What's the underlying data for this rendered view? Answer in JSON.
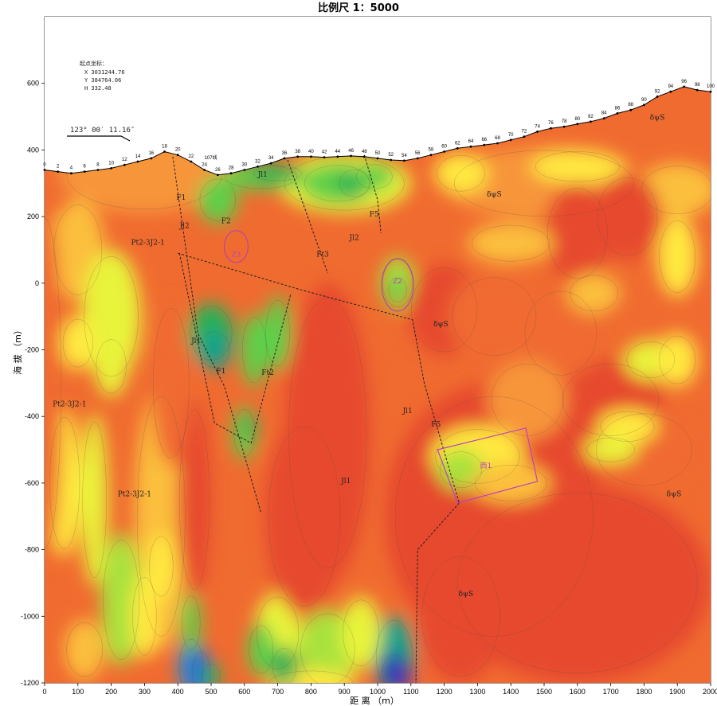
{
  "chart_data": {
    "type": "heatmap",
    "title": "比例尺  1：5000",
    "xlabel": "距 离 （m）",
    "ylabel": "海 拔 （m）",
    "xlim": [
      0,
      2000
    ],
    "ylim": [
      -1200,
      800
    ],
    "x_ticks": [
      0,
      100,
      200,
      300,
      400,
      500,
      600,
      700,
      800,
      900,
      1000,
      1100,
      1200,
      1300,
      1400,
      1500,
      1600,
      1700,
      1800,
      1900,
      2000
    ],
    "y_ticks": [
      600,
      400,
      200,
      0,
      -200,
      -400,
      -600,
      -800,
      -1000,
      -1200
    ],
    "start_coordinates": {
      "heading": "起点坐标：",
      "x": "X 3031244.76",
      "y": "Y 384764.06",
      "h": "H 332.48"
    },
    "azimuth": "123° 00′ 11.16″",
    "station_labels": [
      "0",
      "2",
      "4",
      "6",
      "8",
      "10",
      "12",
      "14",
      "16",
      "18",
      "20",
      "22",
      "24",
      "26",
      "28",
      "30",
      "32",
      "34",
      "36",
      "38",
      "40",
      "42",
      "44",
      "46",
      "48",
      "50",
      "52",
      "54",
      "56",
      "58",
      "60",
      "62",
      "64",
      "66",
      "68",
      "70",
      "72",
      "74",
      "76",
      "78",
      "80",
      "82",
      "84",
      "86",
      "88",
      "90",
      "92",
      "94",
      "96",
      "98",
      "100"
    ],
    "station_distance_interval_m": 20,
    "station_elevations_m": [
      340,
      335,
      330,
      335,
      340,
      345,
      355,
      365,
      375,
      395,
      385,
      365,
      340,
      325,
      330,
      340,
      350,
      360,
      375,
      380,
      380,
      378,
      380,
      382,
      380,
      375,
      370,
      368,
      375,
      385,
      395,
      405,
      410,
      415,
      420,
      430,
      440,
      455,
      465,
      470,
      478,
      485,
      495,
      510,
      520,
      535,
      560,
      575,
      590,
      580,
      575
    ],
    "geology_labels": [
      {
        "text": "Pt2-3J2-1",
        "x": 75,
        "y": -370
      },
      {
        "text": "Pt2-3J2-1",
        "x": 270,
        "y": -640
      },
      {
        "text": "Pt2-3J2-1",
        "x": 310,
        "y": 115
      },
      {
        "text": "Jl2",
        "x": 420,
        "y": 165
      },
      {
        "text": "Jl1",
        "x": 455,
        "y": -180
      },
      {
        "text": "Jl1",
        "x": 655,
        "y": 320
      },
      {
        "text": "Jl2",
        "x": 930,
        "y": 130
      },
      {
        "text": "Jl1",
        "x": 905,
        "y": -600
      },
      {
        "text": "Jl1",
        "x": 1090,
        "y": -390
      },
      {
        "text": "δψS",
        "x": 1350,
        "y": 260
      },
      {
        "text": "δψS",
        "x": 1190,
        "y": -130
      },
      {
        "text": "δψS",
        "x": 1840,
        "y": 490
      },
      {
        "text": "δψS",
        "x": 1890,
        "y": -640
      },
      {
        "text": "δψS",
        "x": 1265,
        "y": -940
      }
    ],
    "fault_labels": [
      {
        "text": "F1",
        "x": 410,
        "y": 250
      },
      {
        "text": "F2",
        "x": 545,
        "y": 180
      },
      {
        "text": "F1",
        "x": 530,
        "y": -270
      },
      {
        "text": "Ft2",
        "x": 670,
        "y": -275
      },
      {
        "text": "Ft3",
        "x": 835,
        "y": 80
      },
      {
        "text": "F5",
        "x": 990,
        "y": 200
      },
      {
        "text": "F5",
        "x": 1175,
        "y": -430
      }
    ],
    "zones": [
      {
        "text": "Z3",
        "x": 575,
        "y": 80
      },
      {
        "text": "Z2",
        "x": 1060,
        "y": 0
      },
      {
        "text": "西1",
        "x": 1325,
        "y": -555
      }
    ],
    "tunnel_label": "107线",
    "palette": [
      "#e64a2e",
      "#f06b30",
      "#f7953a",
      "#fbbf3c",
      "#ffe93f",
      "#e8f33b",
      "#a9e23c",
      "#5fcf48",
      "#2bb055",
      "#17a38a",
      "#2a8ccf",
      "#2d59d8",
      "#2438b6",
      "#5d2fb0"
    ]
  }
}
